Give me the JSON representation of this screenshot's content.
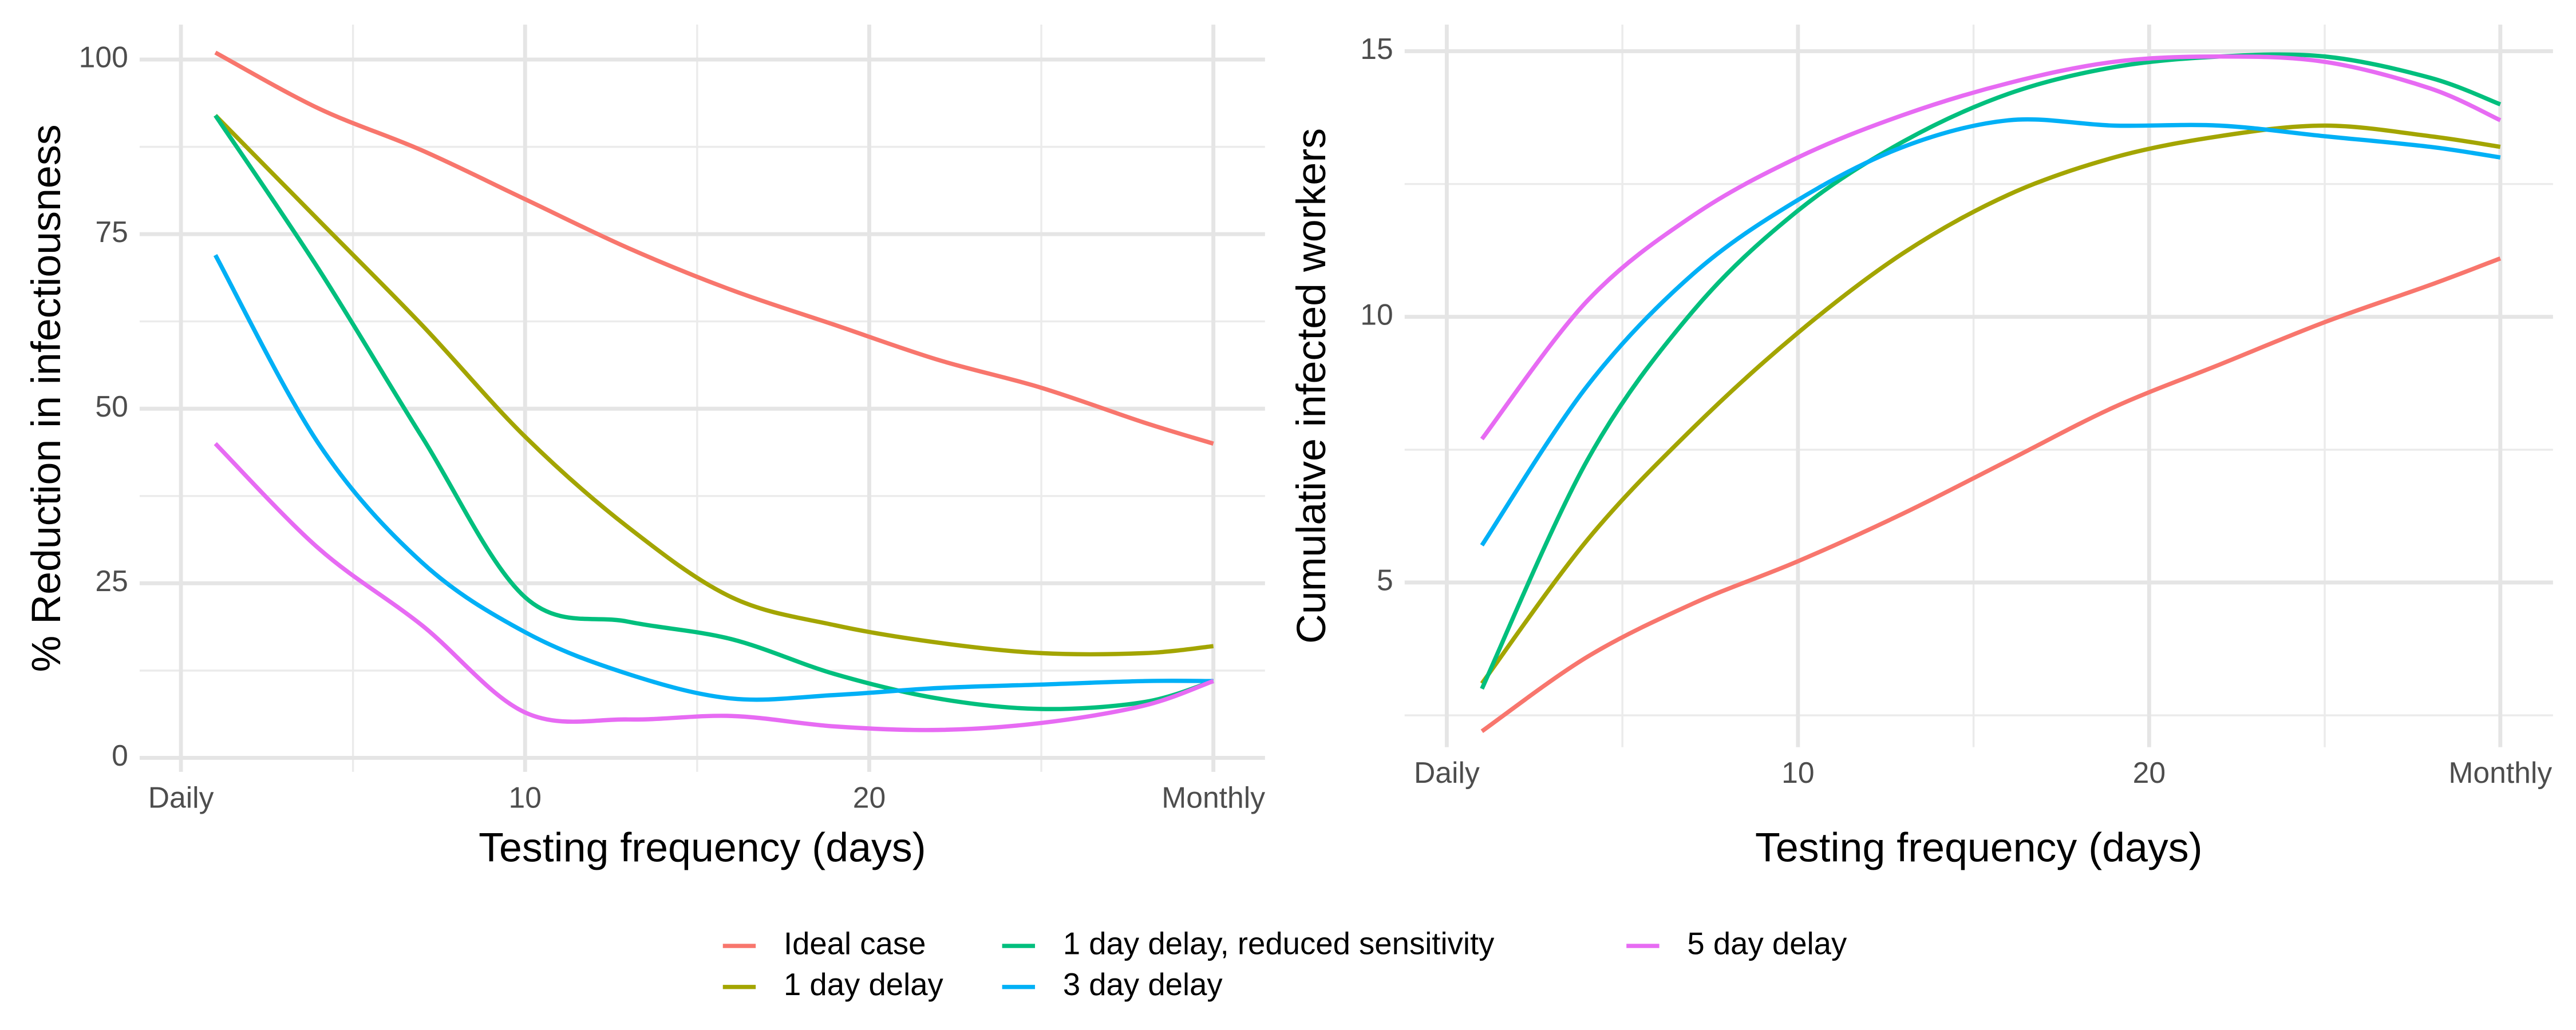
{
  "chart_data": [
    {
      "type": "line",
      "x_label": "Testing frequency (days)",
      "y_label": "% Reduction in infectiousness",
      "x": [
        1,
        4,
        7,
        10,
        13,
        16,
        19,
        22,
        25,
        28,
        30
      ],
      "xlim": [
        -1.2,
        31.5
      ],
      "xticks": [
        {
          "value": 0,
          "label": "Daily"
        },
        10,
        20,
        {
          "value": 30,
          "label": "Monthly"
        }
      ],
      "ylim": [
        -2,
        105
      ],
      "yticks": [
        0,
        25,
        50,
        75,
        100
      ],
      "grid": true,
      "series": [
        {
          "name": "Ideal case",
          "color": "#F8766D",
          "values": [
            101,
            93,
            87,
            80,
            73,
            67,
            62,
            57,
            53,
            48,
            45
          ]
        },
        {
          "name": "1 day delay",
          "color": "#A3A500",
          "values": [
            92,
            77,
            62,
            46,
            33,
            23,
            19,
            16.5,
            15,
            15,
            16
          ]
        },
        {
          "name": "1 day delay, reduced sensitivity",
          "color": "#00BF7D",
          "values": [
            92,
            70,
            46,
            23,
            19.5,
            17,
            12,
            8.5,
            7,
            8,
            11
          ]
        },
        {
          "name": "3 day delay",
          "color": "#00B0F6",
          "values": [
            72,
            45,
            28,
            18,
            12,
            8.5,
            9,
            10,
            10.5,
            11,
            11
          ]
        },
        {
          "name": "5 day delay",
          "color": "#E76BF3",
          "values": [
            45,
            30,
            19,
            6.5,
            5.5,
            6,
            4.5,
            4,
            5,
            7.5,
            11
          ]
        }
      ]
    },
    {
      "type": "line",
      "x_label": "Testing frequency (days)",
      "y_label": "Cumulative infected workers",
      "x": [
        1,
        4,
        7,
        10,
        13,
        16,
        19,
        22,
        25,
        28,
        30
      ],
      "xlim": [
        -1.2,
        31.5
      ],
      "xticks": [
        {
          "value": 0,
          "label": "Daily"
        },
        10,
        20,
        {
          "value": 30,
          "label": "Monthly"
        }
      ],
      "ylim": [
        1.9,
        15.5
      ],
      "yticks": [
        5,
        10,
        15
      ],
      "grid": true,
      "series": [
        {
          "name": "Ideal case",
          "color": "#F8766D",
          "values": [
            2.2,
            3.6,
            4.6,
            5.4,
            6.3,
            7.3,
            8.3,
            9.1,
            9.9,
            10.6,
            11.1
          ]
        },
        {
          "name": "1 day delay",
          "color": "#A3A500",
          "values": [
            3.1,
            5.8,
            7.9,
            9.7,
            11.2,
            12.3,
            13.0,
            13.4,
            13.6,
            13.4,
            13.2
          ]
        },
        {
          "name": "1 day delay, reduced sensitivity",
          "color": "#00BF7D",
          "values": [
            3.0,
            7.3,
            10.1,
            12.0,
            13.3,
            14.2,
            14.7,
            14.9,
            14.9,
            14.5,
            14.0
          ]
        },
        {
          "name": "3 day delay",
          "color": "#00B0F6",
          "values": [
            5.7,
            8.7,
            10.8,
            12.2,
            13.2,
            13.7,
            13.6,
            13.6,
            13.4,
            13.2,
            13.0
          ]
        },
        {
          "name": "5 day delay",
          "color": "#E76BF3",
          "values": [
            7.7,
            10.3,
            11.9,
            13.0,
            13.8,
            14.4,
            14.8,
            14.9,
            14.8,
            14.3,
            13.7
          ]
        }
      ]
    }
  ]
}
